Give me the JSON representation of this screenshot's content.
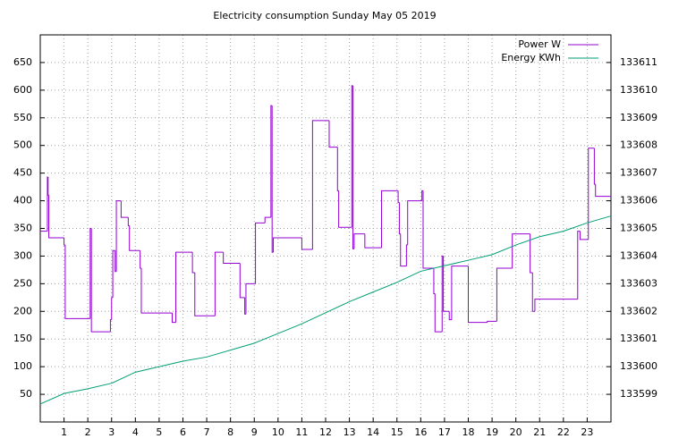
{
  "chart_data": {
    "type": "line",
    "title": "Electricity consumption Sunday May 05 2019",
    "xlim": [
      0,
      24
    ],
    "xticks": [
      1,
      2,
      3,
      4,
      5,
      6,
      7,
      8,
      9,
      10,
      11,
      12,
      13,
      14,
      15,
      16,
      17,
      18,
      19,
      20,
      21,
      22,
      23
    ],
    "ylim": [
      0,
      700
    ],
    "yticks": [
      50,
      100,
      150,
      200,
      250,
      300,
      350,
      400,
      450,
      500,
      550,
      600,
      650
    ],
    "y2lim": [
      133598,
      133612
    ],
    "y2ticks": [
      133599,
      133600,
      133601,
      133602,
      133603,
      133604,
      133605,
      133606,
      133607,
      133608,
      133609,
      133610,
      133611
    ],
    "grid": true,
    "legend": "top-right",
    "series": [
      {
        "name": "Power W",
        "color": "#9400d3",
        "step": true,
        "x": [
          0,
          0.3,
          0.33,
          0.36,
          1.0,
          1.05,
          2.1,
          2.15,
          2.95,
          3.0,
          3.05,
          3.15,
          3.2,
          3.4,
          3.7,
          3.75,
          4.2,
          4.25,
          5.55,
          5.7,
          6.4,
          6.5,
          7.35,
          7.7,
          8.4,
          8.6,
          8.65,
          9.05,
          9.45,
          9.7,
          9.75,
          9.8,
          11.0,
          11.45,
          12.15,
          12.5,
          12.55,
          13.1,
          13.15,
          13.2,
          13.65,
          14.35,
          15.05,
          15.1,
          15.15,
          15.4,
          15.45,
          16.05,
          16.1,
          16.55,
          16.6,
          16.9,
          16.95,
          17.2,
          17.3,
          18.0,
          18.8,
          19.2,
          19.85,
          20.6,
          20.7,
          20.8,
          22.6,
          22.7,
          23.05,
          23.3,
          23.35
        ],
        "values": [
          345,
          443,
          410,
          333,
          320,
          187,
          350,
          163,
          185,
          225,
          310,
          272,
          400,
          370,
          355,
          310,
          278,
          197,
          180,
          307,
          270,
          192,
          307,
          287,
          225,
          195,
          250,
          360,
          370,
          572,
          307,
          333,
          312,
          545,
          497,
          418,
          352,
          608,
          313,
          340,
          315,
          418,
          397,
          340,
          282,
          320,
          400,
          418,
          278,
          232,
          163,
          300,
          200,
          185,
          282,
          180,
          182,
          278,
          340,
          270,
          200,
          222,
          345,
          330,
          495,
          430,
          408
        ]
      },
      {
        "name": "Energy KWh",
        "color": "#009e73",
        "axis": "y2",
        "x": [
          0,
          1,
          2,
          3,
          4,
          5,
          6,
          7,
          8,
          9,
          10,
          11,
          12,
          13,
          14,
          15,
          16,
          17,
          18,
          19,
          20,
          21,
          22,
          23,
          24
        ],
        "values": [
          133598.65,
          133599.03,
          133599.2,
          133599.4,
          133599.8,
          133600.0,
          133600.2,
          133600.35,
          133600.6,
          133600.85,
          133601.2,
          133601.55,
          133601.95,
          133602.35,
          133602.7,
          133603.05,
          133603.45,
          133603.65,
          133603.85,
          133604.05,
          133604.4,
          133604.7,
          133604.9,
          133605.2,
          133605.45
        ]
      }
    ]
  }
}
